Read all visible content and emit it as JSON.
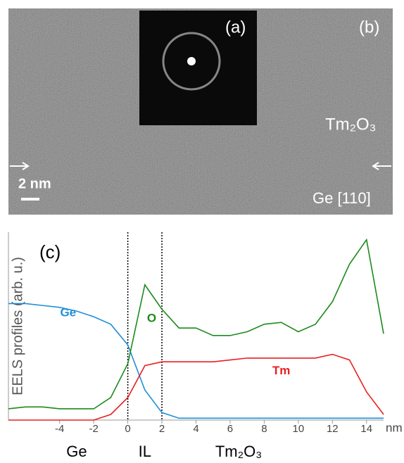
{
  "image_labels": {
    "inset": "(a)",
    "panel": "(b)",
    "oxide": "Tm₂O₃",
    "scale_bar": "2 nm",
    "substrate": "Ge [110]"
  },
  "chart_data": {
    "type": "line",
    "panel_label": "(c)",
    "y_label": "EELS profiles (arb. u.)",
    "x_unit": "nm",
    "x": [
      -7,
      -6,
      -5,
      -4,
      -3,
      -2,
      -1,
      0,
      1,
      2,
      3,
      4,
      5,
      6,
      7,
      8,
      9,
      10,
      11,
      12,
      13,
      14,
      15
    ],
    "series": [
      {
        "name": "Ge",
        "color": "#1f8fd8",
        "values": [
          62,
          62,
          61,
          60,
          58,
          55,
          51,
          40,
          16,
          4,
          1,
          1,
          1,
          1,
          1,
          1,
          1,
          1,
          1,
          1,
          1,
          1,
          1
        ],
        "label_at": [
          -3.5,
          57
        ]
      },
      {
        "name": "O",
        "color": "#1d8a1d",
        "values": [
          6,
          7,
          7,
          6,
          6,
          6,
          12,
          30,
          72,
          59,
          49,
          49,
          45,
          45,
          47,
          51,
          52,
          47,
          51,
          63,
          83,
          96,
          46
        ],
        "label_at": [
          1.4,
          54
        ]
      },
      {
        "name": "Tm",
        "color": "#e82020",
        "values": [
          0,
          0,
          0,
          0,
          0,
          0,
          3,
          12,
          29,
          31,
          31,
          31,
          31,
          32,
          33,
          33,
          33,
          33,
          33,
          35,
          32,
          15,
          3
        ],
        "label_at": [
          9,
          26
        ]
      }
    ],
    "xlim": [
      -7,
      15
    ],
    "ylim": [
      0,
      100
    ],
    "xticks": [
      -4,
      -2,
      0,
      2,
      4,
      6,
      8,
      10,
      12,
      14
    ],
    "boundaries": [
      0,
      2
    ],
    "regions": [
      {
        "label": "Ge",
        "x": -3
      },
      {
        "label": "IL",
        "x": 1
      },
      {
        "label": "Tm₂O₃",
        "x": 6.5
      }
    ]
  }
}
